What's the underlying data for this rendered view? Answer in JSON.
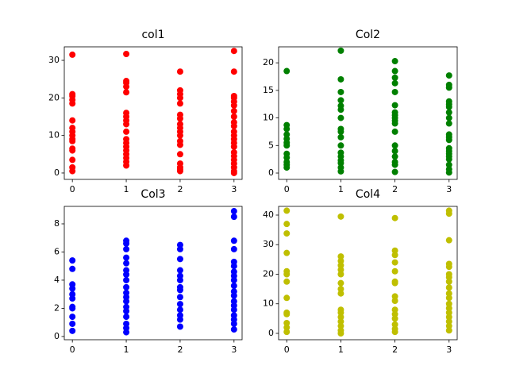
{
  "chart_data": [
    {
      "type": "scatter",
      "title": "col1",
      "color": "#ff0000",
      "x": [
        0,
        0,
        0,
        0,
        0,
        0,
        0,
        0,
        0,
        0,
        0,
        0,
        0,
        0,
        0,
        0,
        1,
        1,
        1,
        1,
        1,
        1,
        1,
        1,
        1,
        1,
        1,
        1,
        1,
        1,
        1,
        1,
        1,
        1,
        2,
        2,
        2,
        2,
        2,
        2,
        2,
        2,
        2,
        2,
        2,
        2,
        2,
        2,
        2,
        2,
        2,
        2,
        3,
        3,
        3,
        3,
        3,
        3,
        3,
        3,
        3,
        3,
        3,
        3,
        3,
        3,
        3,
        3,
        3,
        3,
        3,
        3,
        3,
        3
      ],
      "y": [
        31.5,
        21,
        20.5,
        19.5,
        18.5,
        14,
        12,
        11,
        10,
        9,
        8.5,
        6.5,
        6,
        3.5,
        1.5,
        0.5,
        31.7,
        24.5,
        24,
        23,
        21.5,
        16,
        15,
        14,
        13,
        11,
        9,
        8,
        7,
        6,
        5,
        4,
        3,
        2,
        27,
        22,
        21,
        20,
        18.5,
        15.5,
        14.5,
        13,
        12,
        11,
        10,
        8.5,
        7.5,
        5,
        2.5,
        1.5,
        1,
        0.5,
        32.5,
        27,
        20.5,
        20,
        19,
        18,
        16.5,
        15,
        13.5,
        12.5,
        11,
        10,
        9,
        8,
        7,
        5.5,
        4.5,
        3.5,
        2.5,
        1.5,
        0.5,
        0
      ],
      "xlim": [
        -0.15,
        3.15
      ],
      "ylim": [
        -1.7,
        33.6
      ],
      "xticks": [
        0,
        1,
        2,
        3
      ],
      "yticks": [
        0,
        10,
        20,
        30
      ]
    },
    {
      "type": "scatter",
      "title": "Col2",
      "color": "#008000",
      "x": [
        0,
        0,
        0,
        0,
        0,
        0,
        0,
        0,
        0,
        0,
        0,
        0,
        1,
        1,
        1,
        1,
        1,
        1,
        1,
        1,
        1,
        1,
        1,
        1,
        1,
        1,
        1,
        1,
        1,
        2,
        2,
        2,
        2,
        2,
        2,
        2,
        2,
        2,
        2,
        2,
        2,
        2,
        2,
        2,
        2,
        2,
        2,
        3,
        3,
        3,
        3,
        3,
        3,
        3,
        3,
        3,
        3,
        3,
        3,
        3,
        3,
        3,
        3,
        3,
        3,
        3,
        3
      ],
      "y": [
        18.5,
        8.7,
        8,
        7,
        6.2,
        5.5,
        5,
        3.5,
        2.8,
        2,
        1.5,
        1,
        22.2,
        17,
        14.7,
        13.2,
        12.2,
        11.5,
        10,
        8,
        7.5,
        6.5,
        5,
        3.7,
        3,
        2.3,
        1.8,
        1,
        0.3,
        20.3,
        18.5,
        17.3,
        16.3,
        14.7,
        12.3,
        11,
        10.5,
        10,
        9.5,
        9,
        7.5,
        5,
        4,
        3,
        2,
        1.5,
        0.2,
        17.7,
        16,
        15.5,
        13,
        12.5,
        12,
        11,
        10,
        9,
        7,
        6.5,
        6,
        4.5,
        4,
        3.5,
        3,
        2.5,
        1.5,
        0.7,
        0.1
      ],
      "xlim": [
        -0.15,
        3.15
      ],
      "ylim": [
        -1.15,
        22.9
      ],
      "xticks": [
        0,
        1,
        2,
        3
      ],
      "yticks": [
        0,
        5,
        10,
        15,
        20
      ]
    },
    {
      "type": "scatter",
      "title": "Col3",
      "color": "#0000ff",
      "x": [
        0,
        0,
        0,
        0,
        0,
        0,
        0,
        0,
        0,
        0,
        0,
        1,
        1,
        1,
        1,
        1,
        1,
        1,
        1,
        1,
        1,
        1,
        1,
        1,
        1,
        1,
        1,
        1,
        1,
        2,
        2,
        2,
        2,
        2,
        2,
        2,
        2,
        2,
        2,
        2,
        2,
        2,
        2,
        3,
        3,
        3,
        3,
        3,
        3,
        3,
        3,
        3,
        3,
        3,
        3,
        3,
        3,
        3,
        3,
        3,
        3,
        3
      ],
      "y": [
        5.4,
        4.8,
        3.7,
        3.4,
        3,
        2.7,
        2.1,
        2,
        1.4,
        0.9,
        0.4,
        6.8,
        6.6,
        6.2,
        5.6,
        5.2,
        4.7,
        4.4,
        4,
        3.5,
        3.1,
        2.8,
        2.5,
        2.1,
        1.8,
        1.4,
        0.9,
        0.6,
        0.3,
        6.5,
        6.2,
        5.5,
        4.7,
        4.3,
        4,
        3.5,
        3.3,
        2.8,
        2.3,
        1.9,
        1.5,
        1.2,
        0.7,
        8.9,
        8.5,
        6.8,
        6.2,
        5.3,
        5,
        4.6,
        4.3,
        4,
        3.6,
        3.2,
        2.9,
        2.5,
        2.2,
        1.9,
        1.5,
        1.2,
        0.9,
        0.5
      ],
      "xlim": [
        -0.15,
        3.15
      ],
      "ylim": [
        -0.23,
        9.24
      ],
      "xticks": [
        0,
        1,
        2,
        3
      ],
      "yticks": [
        0,
        2,
        4,
        6,
        8
      ]
    },
    {
      "type": "scatter",
      "title": "Col4",
      "color": "#bfbf00",
      "x": [
        0,
        0,
        0,
        0,
        0,
        0,
        0,
        0,
        0,
        0,
        0,
        0,
        0,
        1,
        1,
        1,
        1,
        1,
        1,
        1,
        1,
        1,
        1,
        1,
        1,
        1,
        1,
        1,
        1,
        2,
        2,
        2,
        2,
        2,
        2,
        2,
        2,
        2,
        2,
        2,
        2,
        2,
        2,
        2,
        3,
        3,
        3,
        3,
        3,
        3,
        3,
        3,
        3,
        3,
        3,
        3,
        3,
        3,
        3,
        3,
        3,
        3
      ],
      "y": [
        41.5,
        37,
        33.8,
        27.2,
        21,
        20,
        17.5,
        12,
        7,
        6.5,
        3.5,
        2,
        0.5,
        39.5,
        26,
        24.5,
        23,
        21.5,
        20,
        17,
        15,
        13.5,
        8,
        7,
        5.5,
        4,
        2.5,
        1,
        0,
        39,
        28,
        26.5,
        24,
        21,
        17.5,
        17,
        12.5,
        11,
        8,
        6.5,
        5,
        3,
        1.5,
        0.5,
        41.5,
        40.5,
        31.5,
        23.5,
        22.5,
        20,
        19,
        17.5,
        15.5,
        13.5,
        12,
        10,
        8.5,
        7,
        5.5,
        4,
        2.5,
        1
      ],
      "xlim": [
        -0.15,
        3.15
      ],
      "ylim": [
        -2.15,
        42.95
      ],
      "xticks": [
        0,
        1,
        2,
        3
      ],
      "yticks": [
        0,
        10,
        20,
        30,
        40
      ]
    }
  ]
}
